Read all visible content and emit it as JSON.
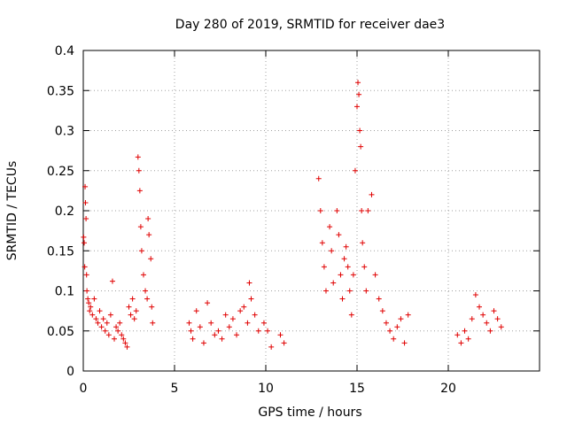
{
  "chart_data": {
    "type": "scatter",
    "title": "Day 280 of 2019, SRMTID for receiver dae3",
    "xlabel": "GPS time / hours",
    "ylabel": "SRMTID / TECUs",
    "xlim": [
      0,
      25
    ],
    "ylim": [
      0,
      0.4
    ],
    "xticks": [
      0,
      5,
      10,
      15,
      20
    ],
    "yticks": [
      0,
      0.05,
      0.1,
      0.15,
      0.2,
      0.25,
      0.3,
      0.35,
      0.4
    ],
    "ytick_labels": [
      "0",
      "0.05",
      "0.1",
      "0.15",
      "0.2",
      "0.25",
      "0.3",
      "0.35",
      "0.4"
    ],
    "grid": true,
    "marker": "+",
    "color": "#e00000",
    "series": [
      {
        "name": "SRMTID",
        "points": [
          [
            0.02,
            0.167
          ],
          [
            0.05,
            0.16
          ],
          [
            0.08,
            0.13
          ],
          [
            0.1,
            0.23
          ],
          [
            0.12,
            0.21
          ],
          [
            0.15,
            0.19
          ],
          [
            0.18,
            0.12
          ],
          [
            0.2,
            0.1
          ],
          [
            0.25,
            0.09
          ],
          [
            0.3,
            0.085
          ],
          [
            0.35,
            0.075
          ],
          [
            0.4,
            0.08
          ],
          [
            0.5,
            0.07
          ],
          [
            0.6,
            0.09
          ],
          [
            0.7,
            0.065
          ],
          [
            0.8,
            0.06
          ],
          [
            0.9,
            0.075
          ],
          [
            1.0,
            0.055
          ],
          [
            1.1,
            0.065
          ],
          [
            1.2,
            0.05
          ],
          [
            1.3,
            0.06
          ],
          [
            1.4,
            0.045
          ],
          [
            1.5,
            0.07
          ],
          [
            1.6,
            0.112
          ],
          [
            1.7,
            0.04
          ],
          [
            1.8,
            0.055
          ],
          [
            1.9,
            0.05
          ],
          [
            2.0,
            0.06
          ],
          [
            2.1,
            0.045
          ],
          [
            2.2,
            0.04
          ],
          [
            2.3,
            0.035
          ],
          [
            2.4,
            0.03
          ],
          [
            2.5,
            0.08
          ],
          [
            2.6,
            0.07
          ],
          [
            2.7,
            0.09
          ],
          [
            2.8,
            0.065
          ],
          [
            2.9,
            0.075
          ],
          [
            3.0,
            0.267
          ],
          [
            3.05,
            0.25
          ],
          [
            3.1,
            0.225
          ],
          [
            3.15,
            0.18
          ],
          [
            3.2,
            0.15
          ],
          [
            3.3,
            0.12
          ],
          [
            3.4,
            0.1
          ],
          [
            3.5,
            0.09
          ],
          [
            3.55,
            0.19
          ],
          [
            3.6,
            0.17
          ],
          [
            3.7,
            0.14
          ],
          [
            3.75,
            0.08
          ],
          [
            3.8,
            0.06
          ],
          [
            5.8,
            0.06
          ],
          [
            5.9,
            0.05
          ],
          [
            6.0,
            0.04
          ],
          [
            6.2,
            0.075
          ],
          [
            6.4,
            0.055
          ],
          [
            6.6,
            0.035
          ],
          [
            6.8,
            0.085
          ],
          [
            7.0,
            0.06
          ],
          [
            7.2,
            0.045
          ],
          [
            7.4,
            0.05
          ],
          [
            7.6,
            0.04
          ],
          [
            7.8,
            0.07
          ],
          [
            8.0,
            0.055
          ],
          [
            8.2,
            0.065
          ],
          [
            8.4,
            0.045
          ],
          [
            8.6,
            0.075
          ],
          [
            8.8,
            0.08
          ],
          [
            9.0,
            0.06
          ],
          [
            9.1,
            0.11
          ],
          [
            9.2,
            0.09
          ],
          [
            9.4,
            0.07
          ],
          [
            9.6,
            0.05
          ],
          [
            9.9,
            0.06
          ],
          [
            10.1,
            0.05
          ],
          [
            10.3,
            0.03
          ],
          [
            10.8,
            0.045
          ],
          [
            11.0,
            0.035
          ],
          [
            12.9,
            0.24
          ],
          [
            13.0,
            0.2
          ],
          [
            13.1,
            0.16
          ],
          [
            13.2,
            0.13
          ],
          [
            13.3,
            0.1
          ],
          [
            13.5,
            0.18
          ],
          [
            13.6,
            0.15
          ],
          [
            13.7,
            0.11
          ],
          [
            13.9,
            0.2
          ],
          [
            14.0,
            0.17
          ],
          [
            14.1,
            0.12
          ],
          [
            14.2,
            0.09
          ],
          [
            14.3,
            0.14
          ],
          [
            14.4,
            0.155
          ],
          [
            14.5,
            0.13
          ],
          [
            14.6,
            0.1
          ],
          [
            14.7,
            0.07
          ],
          [
            14.8,
            0.12
          ],
          [
            14.9,
            0.25
          ],
          [
            15.0,
            0.33
          ],
          [
            15.05,
            0.36
          ],
          [
            15.1,
            0.345
          ],
          [
            15.15,
            0.3
          ],
          [
            15.2,
            0.28
          ],
          [
            15.25,
            0.2
          ],
          [
            15.3,
            0.16
          ],
          [
            15.4,
            0.13
          ],
          [
            15.5,
            0.1
          ],
          [
            15.6,
            0.2
          ],
          [
            15.8,
            0.22
          ],
          [
            16.0,
            0.12
          ],
          [
            16.2,
            0.09
          ],
          [
            16.4,
            0.075
          ],
          [
            16.6,
            0.06
          ],
          [
            16.8,
            0.05
          ],
          [
            17.0,
            0.04
          ],
          [
            17.2,
            0.055
          ],
          [
            17.4,
            0.065
          ],
          [
            17.6,
            0.035
          ],
          [
            17.8,
            0.07
          ],
          [
            20.5,
            0.045
          ],
          [
            20.7,
            0.035
          ],
          [
            20.9,
            0.05
          ],
          [
            21.1,
            0.04
          ],
          [
            21.3,
            0.065
          ],
          [
            21.5,
            0.095
          ],
          [
            21.7,
            0.08
          ],
          [
            21.9,
            0.07
          ],
          [
            22.1,
            0.06
          ],
          [
            22.3,
            0.05
          ],
          [
            22.5,
            0.075
          ],
          [
            22.7,
            0.065
          ],
          [
            22.9,
            0.055
          ]
        ]
      }
    ]
  }
}
